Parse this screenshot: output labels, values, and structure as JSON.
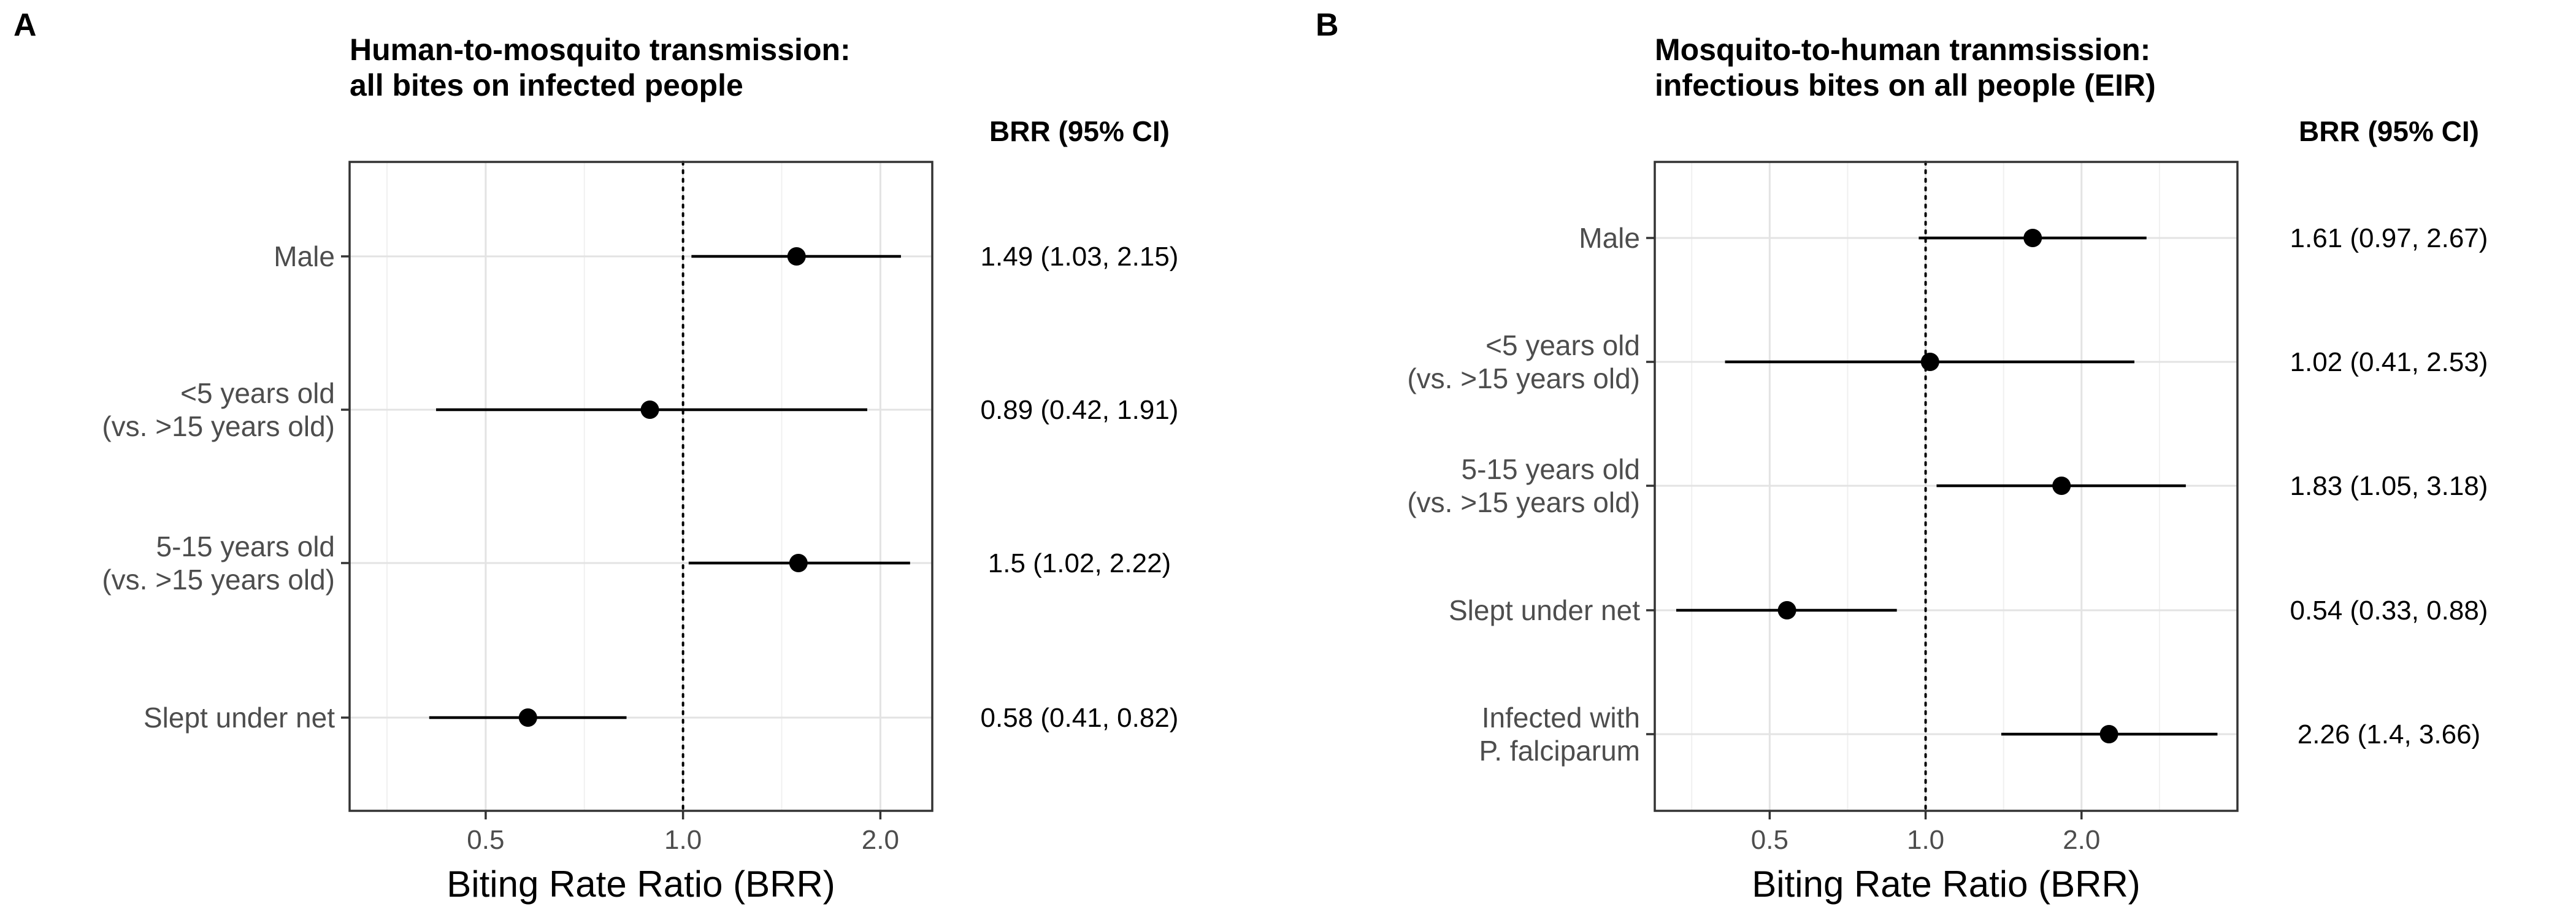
{
  "chart_data": [
    {
      "type": "scatter",
      "panel_label": "A",
      "title": [
        "Human-to-mosquito transmission:",
        "all bites on infected people"
      ],
      "xlabel": "Biting Rate Ratio (BRR)",
      "ylabel": "",
      "x_scale": "log",
      "xlim": [
        0.31,
        2.4
      ],
      "xticks": [
        0.5,
        1.0,
        2.0
      ],
      "xtick_labels": [
        "0.5",
        "1.0",
        "2.0"
      ],
      "reference_line": 1.0,
      "grid": true,
      "ci_header": "BRR (95% CI)",
      "categories": [
        [
          "Male"
        ],
        [
          "<5 years old",
          "(vs. >15 years old)"
        ],
        [
          "5-15 years old",
          "(vs. >15 years old)"
        ],
        [
          "Slept under net"
        ]
      ],
      "estimates": [
        1.49,
        0.89,
        1.5,
        0.58
      ],
      "ci_lower": [
        1.03,
        0.42,
        1.02,
        0.41
      ],
      "ci_upper": [
        2.15,
        1.91,
        2.22,
        0.82
      ],
      "ci_labels": [
        "1.49 (1.03, 2.15)",
        "0.89 (0.42, 1.91)",
        "1.5 (1.02, 2.22)",
        "0.58 (0.41, 0.82)"
      ]
    },
    {
      "type": "scatter",
      "panel_label": "B",
      "title": [
        "Mosquito-to-human tranmsission:",
        "infectious bites on all people (EIR)"
      ],
      "xlabel": "Biting Rate Ratio (BRR)",
      "ylabel": "",
      "x_scale": "log",
      "xlim": [
        0.3,
        4.0
      ],
      "xticks": [
        0.5,
        1.0,
        2.0
      ],
      "xtick_labels": [
        "0.5",
        "1.0",
        "2.0"
      ],
      "reference_line": 1.0,
      "grid": true,
      "ci_header": "BRR (95% CI)",
      "categories": [
        [
          "Male"
        ],
        [
          "<5 years old",
          "(vs. >15 years old)"
        ],
        [
          "5-15 years old",
          "(vs. >15 years old)"
        ],
        [
          "Slept under net"
        ],
        [
          "Infected with",
          "P. falciparum"
        ]
      ],
      "estimates": [
        1.61,
        1.02,
        1.83,
        0.54,
        2.26
      ],
      "ci_lower": [
        0.97,
        0.41,
        1.05,
        0.33,
        1.4
      ],
      "ci_upper": [
        2.67,
        2.53,
        3.18,
        0.88,
        3.66
      ],
      "ci_labels": [
        "1.61 (0.97, 2.67)",
        "1.02 (0.41, 2.53)",
        "1.83 (1.05, 3.18)",
        "0.54 (0.33, 0.88)",
        "2.26 (1.4, 3.66)"
      ]
    }
  ]
}
